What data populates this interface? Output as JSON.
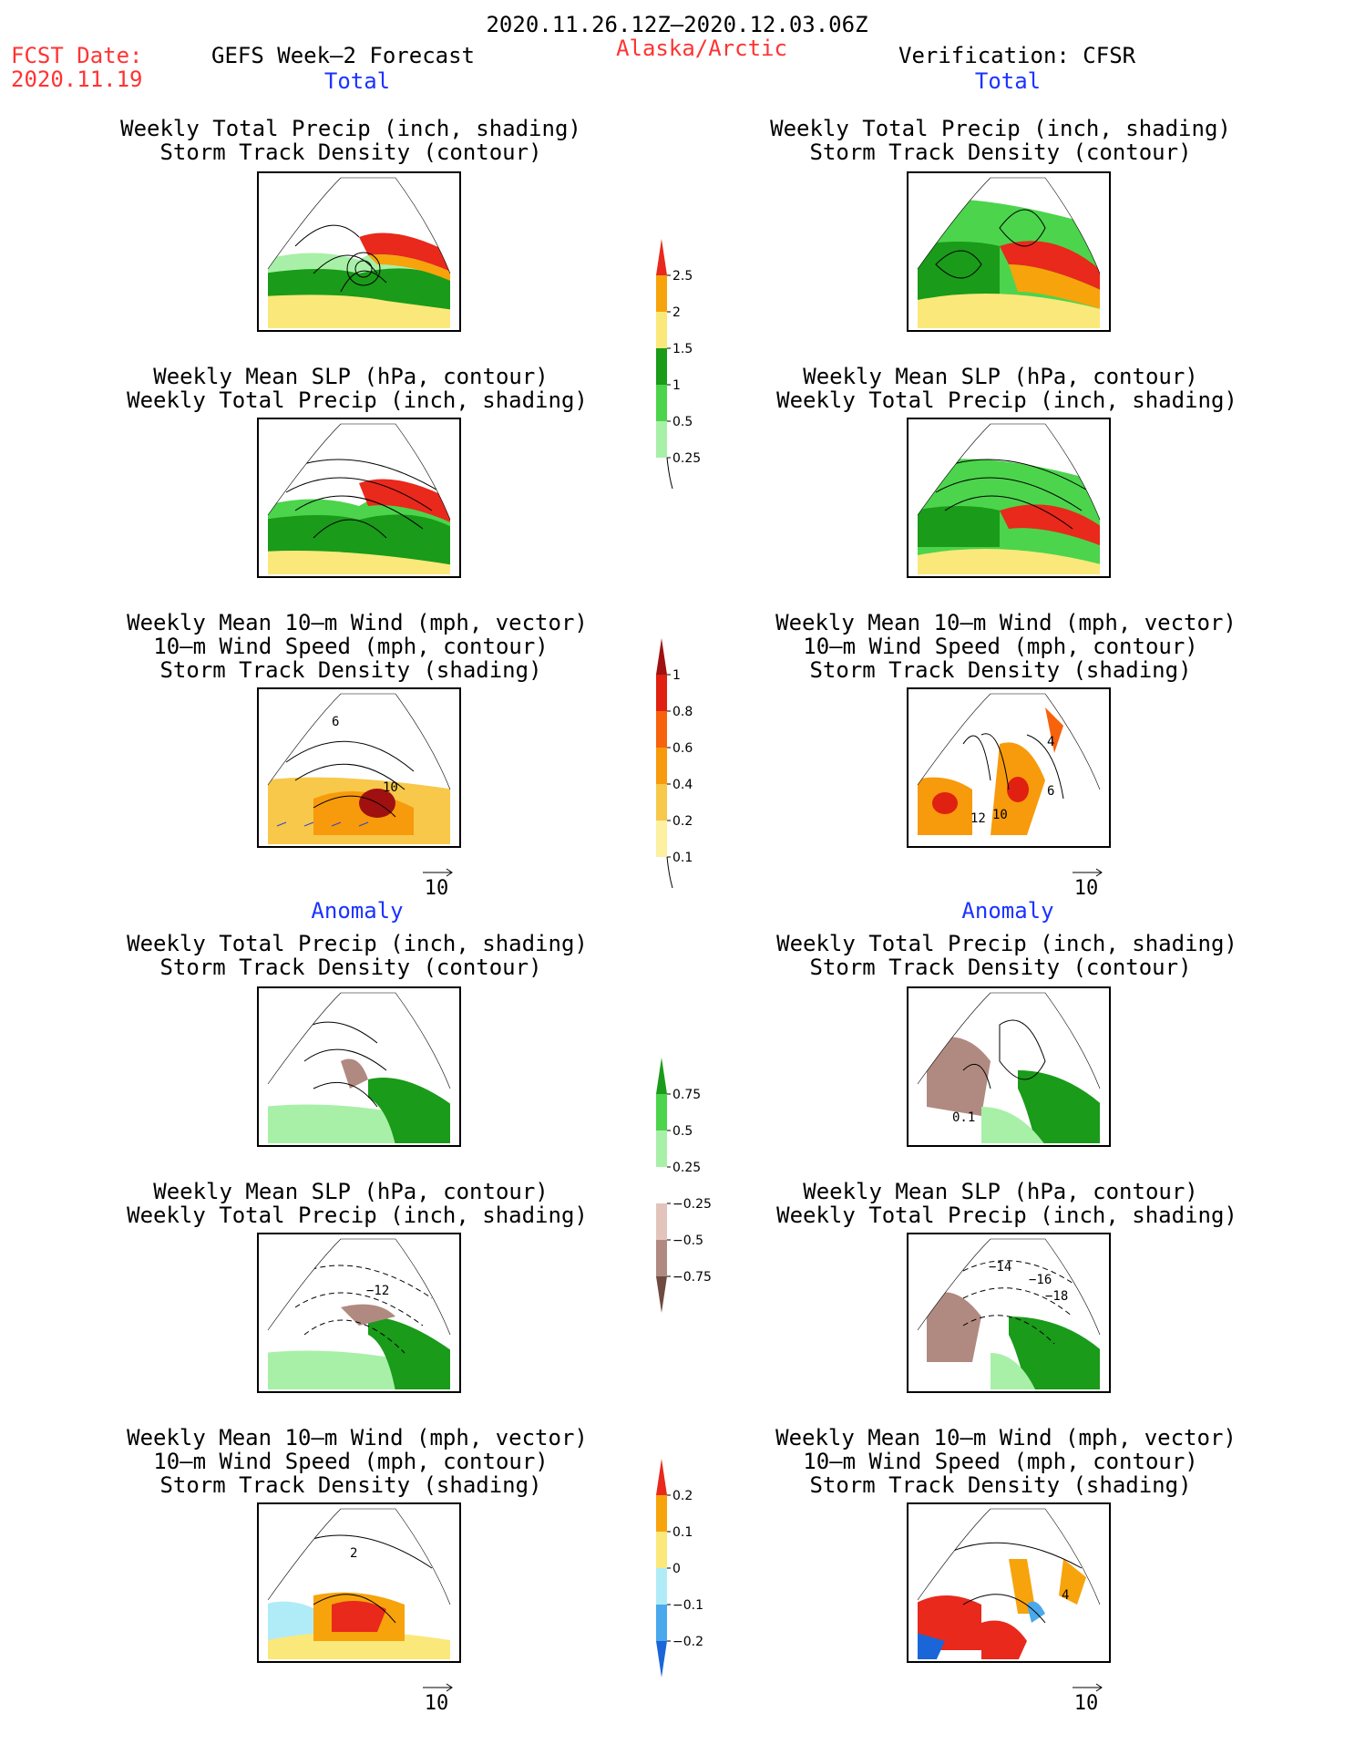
{
  "header": {
    "period": "2020.11.26.12Z–2020.12.03.06Z",
    "fcst_label": "FCST Date:",
    "fcst_date": "2020.11.19",
    "left_title": "GEFS Week–2 Forecast",
    "region": "Alaska/Arctic",
    "right_title": "Verification: CFSR"
  },
  "sections": {
    "total": "Total",
    "anomaly": "Anomaly"
  },
  "panel_titles": {
    "precip_track": [
      "Weekly Total Precip (inch, shading)",
      "Storm Track Density (contour)"
    ],
    "slp_precip": [
      "Weekly Mean SLP (hPa, contour)",
      "Weekly Total Precip (inch, shading)"
    ],
    "wind": [
      "Weekly Mean 10–m Wind (mph, vector)",
      "10–m Wind Speed (mph, contour)",
      "Storm Track Density (shading)"
    ]
  },
  "vector_reference": "10",
  "colorbars": {
    "precip_total": {
      "labels": [
        "2.5",
        "2",
        "1.5",
        "1",
        "0.5",
        "0.25"
      ],
      "colors": [
        "#e8291c",
        "#f7a30c",
        "#fbe87a",
        "#1a9b1a",
        "#4cd44c",
        "#a8f0a8"
      ]
    },
    "track_total": {
      "labels": [
        "1",
        "0.8",
        "0.6",
        "0.4",
        "0.2",
        "0.1"
      ],
      "colors": [
        "#a01010",
        "#e02010",
        "#f7620c",
        "#f79a0c",
        "#f7c84a",
        "#fdf0a0"
      ]
    },
    "precip_anom": {
      "labels": [
        "0.75",
        "0.5",
        "0.25",
        "−0.25",
        "−0.5",
        "−0.75"
      ],
      "colors": [
        "#1a9b1a",
        "#4cd44c",
        "#a8f0a8",
        "#ffffff",
        "#e2c4bc",
        "#b08a80",
        "#6e4a40"
      ]
    },
    "track_anom": {
      "labels": [
        "0.2",
        "0.1",
        "0",
        "−0.1",
        "−0.2"
      ],
      "colors": [
        "#e8291c",
        "#f7a30c",
        "#fbe87a",
        "#b0ecf8",
        "#4aa8ec",
        "#1a66d8"
      ]
    }
  },
  "contour_labels": {
    "wind_total_left": [
      "6",
      "10"
    ],
    "wind_total_right": [
      "12",
      "10",
      "6",
      "4"
    ],
    "track_anom_right": [
      "0.1"
    ],
    "slp_anom_left": [
      "−12"
    ],
    "slp_anom_right": [
      "−14",
      "−16",
      "−18"
    ],
    "wind_anom_left": [
      "2"
    ],
    "wind_anom_right": [
      "4"
    ]
  }
}
